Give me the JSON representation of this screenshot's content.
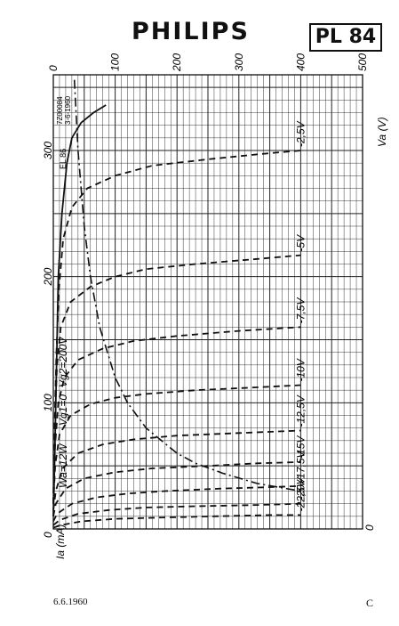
{
  "header": {
    "brand": "PHILIPS",
    "model": "PL 84"
  },
  "footer": {
    "date": "6.6.1960",
    "sheet": "C"
  },
  "drawing_ref": [
    "7Z00084",
    "3-6-1960"
  ],
  "ref_code": "EL 86",
  "chart_data": {
    "type": "line",
    "x_axis": {
      "label": "Ia (mA)",
      "range": [
        0,
        360
      ],
      "ticks": [
        "0",
        "100",
        "200",
        "300"
      ]
    },
    "y_axis": {
      "label": "Va (V)",
      "range": [
        0,
        500
      ],
      "ticks": [
        "0",
        "100",
        "200",
        "300",
        "400",
        "500"
      ]
    },
    "annotations": {
      "vg1_zero": "Vg1=0",
      "vg2": "Vg2=200V",
      "power_limit": "Wa=12W"
    },
    "grid": true,
    "series": [
      {
        "name": "Vg1=0",
        "style": "solid",
        "points": [
          [
            10,
            0
          ],
          [
            50,
            2
          ],
          [
            100,
            4
          ],
          [
            150,
            6
          ],
          [
            200,
            8
          ],
          [
            250,
            14
          ],
          [
            290,
            22
          ],
          [
            310,
            30
          ],
          [
            322,
            45
          ],
          [
            330,
            65
          ],
          [
            336,
            85
          ]
        ]
      },
      {
        "name": "-2,5V",
        "style": "dashed",
        "points": [
          [
            20,
            0
          ],
          [
            80,
            2
          ],
          [
            140,
            5
          ],
          [
            190,
            9
          ],
          [
            230,
            16
          ],
          [
            255,
            30
          ],
          [
            270,
            55
          ],
          [
            280,
            100
          ],
          [
            288,
            160
          ],
          [
            293,
            250
          ],
          [
            297,
            330
          ],
          [
            300,
            400
          ]
        ]
      },
      {
        "name": "-5V",
        "style": "dashed",
        "points": [
          [
            20,
            0
          ],
          [
            80,
            2
          ],
          [
            130,
            6
          ],
          [
            160,
            12
          ],
          [
            180,
            28
          ],
          [
            192,
            60
          ],
          [
            200,
            100
          ],
          [
            206,
            150
          ],
          [
            210,
            230
          ],
          [
            214,
            330
          ],
          [
            217,
            400
          ]
        ]
      },
      {
        "name": "-7,5V",
        "style": "dashed",
        "points": [
          [
            20,
            0
          ],
          [
            60,
            2
          ],
          [
            100,
            8
          ],
          [
            120,
            18
          ],
          [
            134,
            40
          ],
          [
            143,
            80
          ],
          [
            149,
            130
          ],
          [
            153,
            200
          ],
          [
            157,
            300
          ],
          [
            160,
            400
          ]
        ]
      },
      {
        "name": "-10V",
        "style": "dashed",
        "points": [
          [
            20,
            0
          ],
          [
            50,
            3
          ],
          [
            75,
            10
          ],
          [
            90,
            28
          ],
          [
            99,
            60
          ],
          [
            104,
            100
          ],
          [
            107,
            150
          ],
          [
            110,
            230
          ],
          [
            112,
            320
          ],
          [
            114,
            400
          ]
        ]
      },
      {
        "name": "-12,5V",
        "style": "dashed",
        "points": [
          [
            15,
            0
          ],
          [
            30,
            4
          ],
          [
            48,
            15
          ],
          [
            60,
            40
          ],
          [
            67,
            80
          ],
          [
            71,
            130
          ],
          [
            74,
            200
          ],
          [
            76,
            300
          ],
          [
            78,
            400
          ]
        ]
      },
      {
        "name": "-15V",
        "style": "dashed",
        "points": [
          [
            10,
            0
          ],
          [
            20,
            4
          ],
          [
            32,
            20
          ],
          [
            40,
            50
          ],
          [
            45,
            100
          ],
          [
            48,
            160
          ],
          [
            50,
            250
          ],
          [
            52,
            330
          ],
          [
            53,
            400
          ]
        ]
      },
      {
        "name": "-17,5V",
        "style": "dashed",
        "points": [
          [
            6,
            0
          ],
          [
            12,
            6
          ],
          [
            20,
            30
          ],
          [
            25,
            70
          ],
          [
            28,
            120
          ],
          [
            30,
            180
          ],
          [
            32,
            270
          ],
          [
            33,
            340
          ],
          [
            34,
            400
          ]
        ]
      },
      {
        "name": "-20V",
        "style": "dashed",
        "points": [
          [
            3,
            0
          ],
          [
            7,
            10
          ],
          [
            12,
            40
          ],
          [
            15,
            90
          ],
          [
            17,
            150
          ],
          [
            18,
            230
          ],
          [
            19,
            330
          ],
          [
            20,
            400
          ]
        ]
      },
      {
        "name": "-22,5V",
        "style": "dashed",
        "points": [
          [
            1,
            0
          ],
          [
            3,
            12
          ],
          [
            6,
            45
          ],
          [
            8,
            100
          ],
          [
            9,
            170
          ],
          [
            10,
            260
          ],
          [
            11,
            350
          ],
          [
            11,
            400
          ]
        ]
      },
      {
        "name": "Wa=12W",
        "style": "dash-dot",
        "points": [
          [
            356,
            34
          ],
          [
            300,
            40
          ],
          [
            240,
            50
          ],
          [
            200,
            60
          ],
          [
            160,
            75
          ],
          [
            120,
            100
          ],
          [
            100,
            120
          ],
          [
            80,
            150
          ],
          [
            60,
            200
          ],
          [
            52,
            230
          ],
          [
            44,
            275
          ],
          [
            36,
            330
          ],
          [
            30,
            400
          ]
        ]
      }
    ]
  }
}
